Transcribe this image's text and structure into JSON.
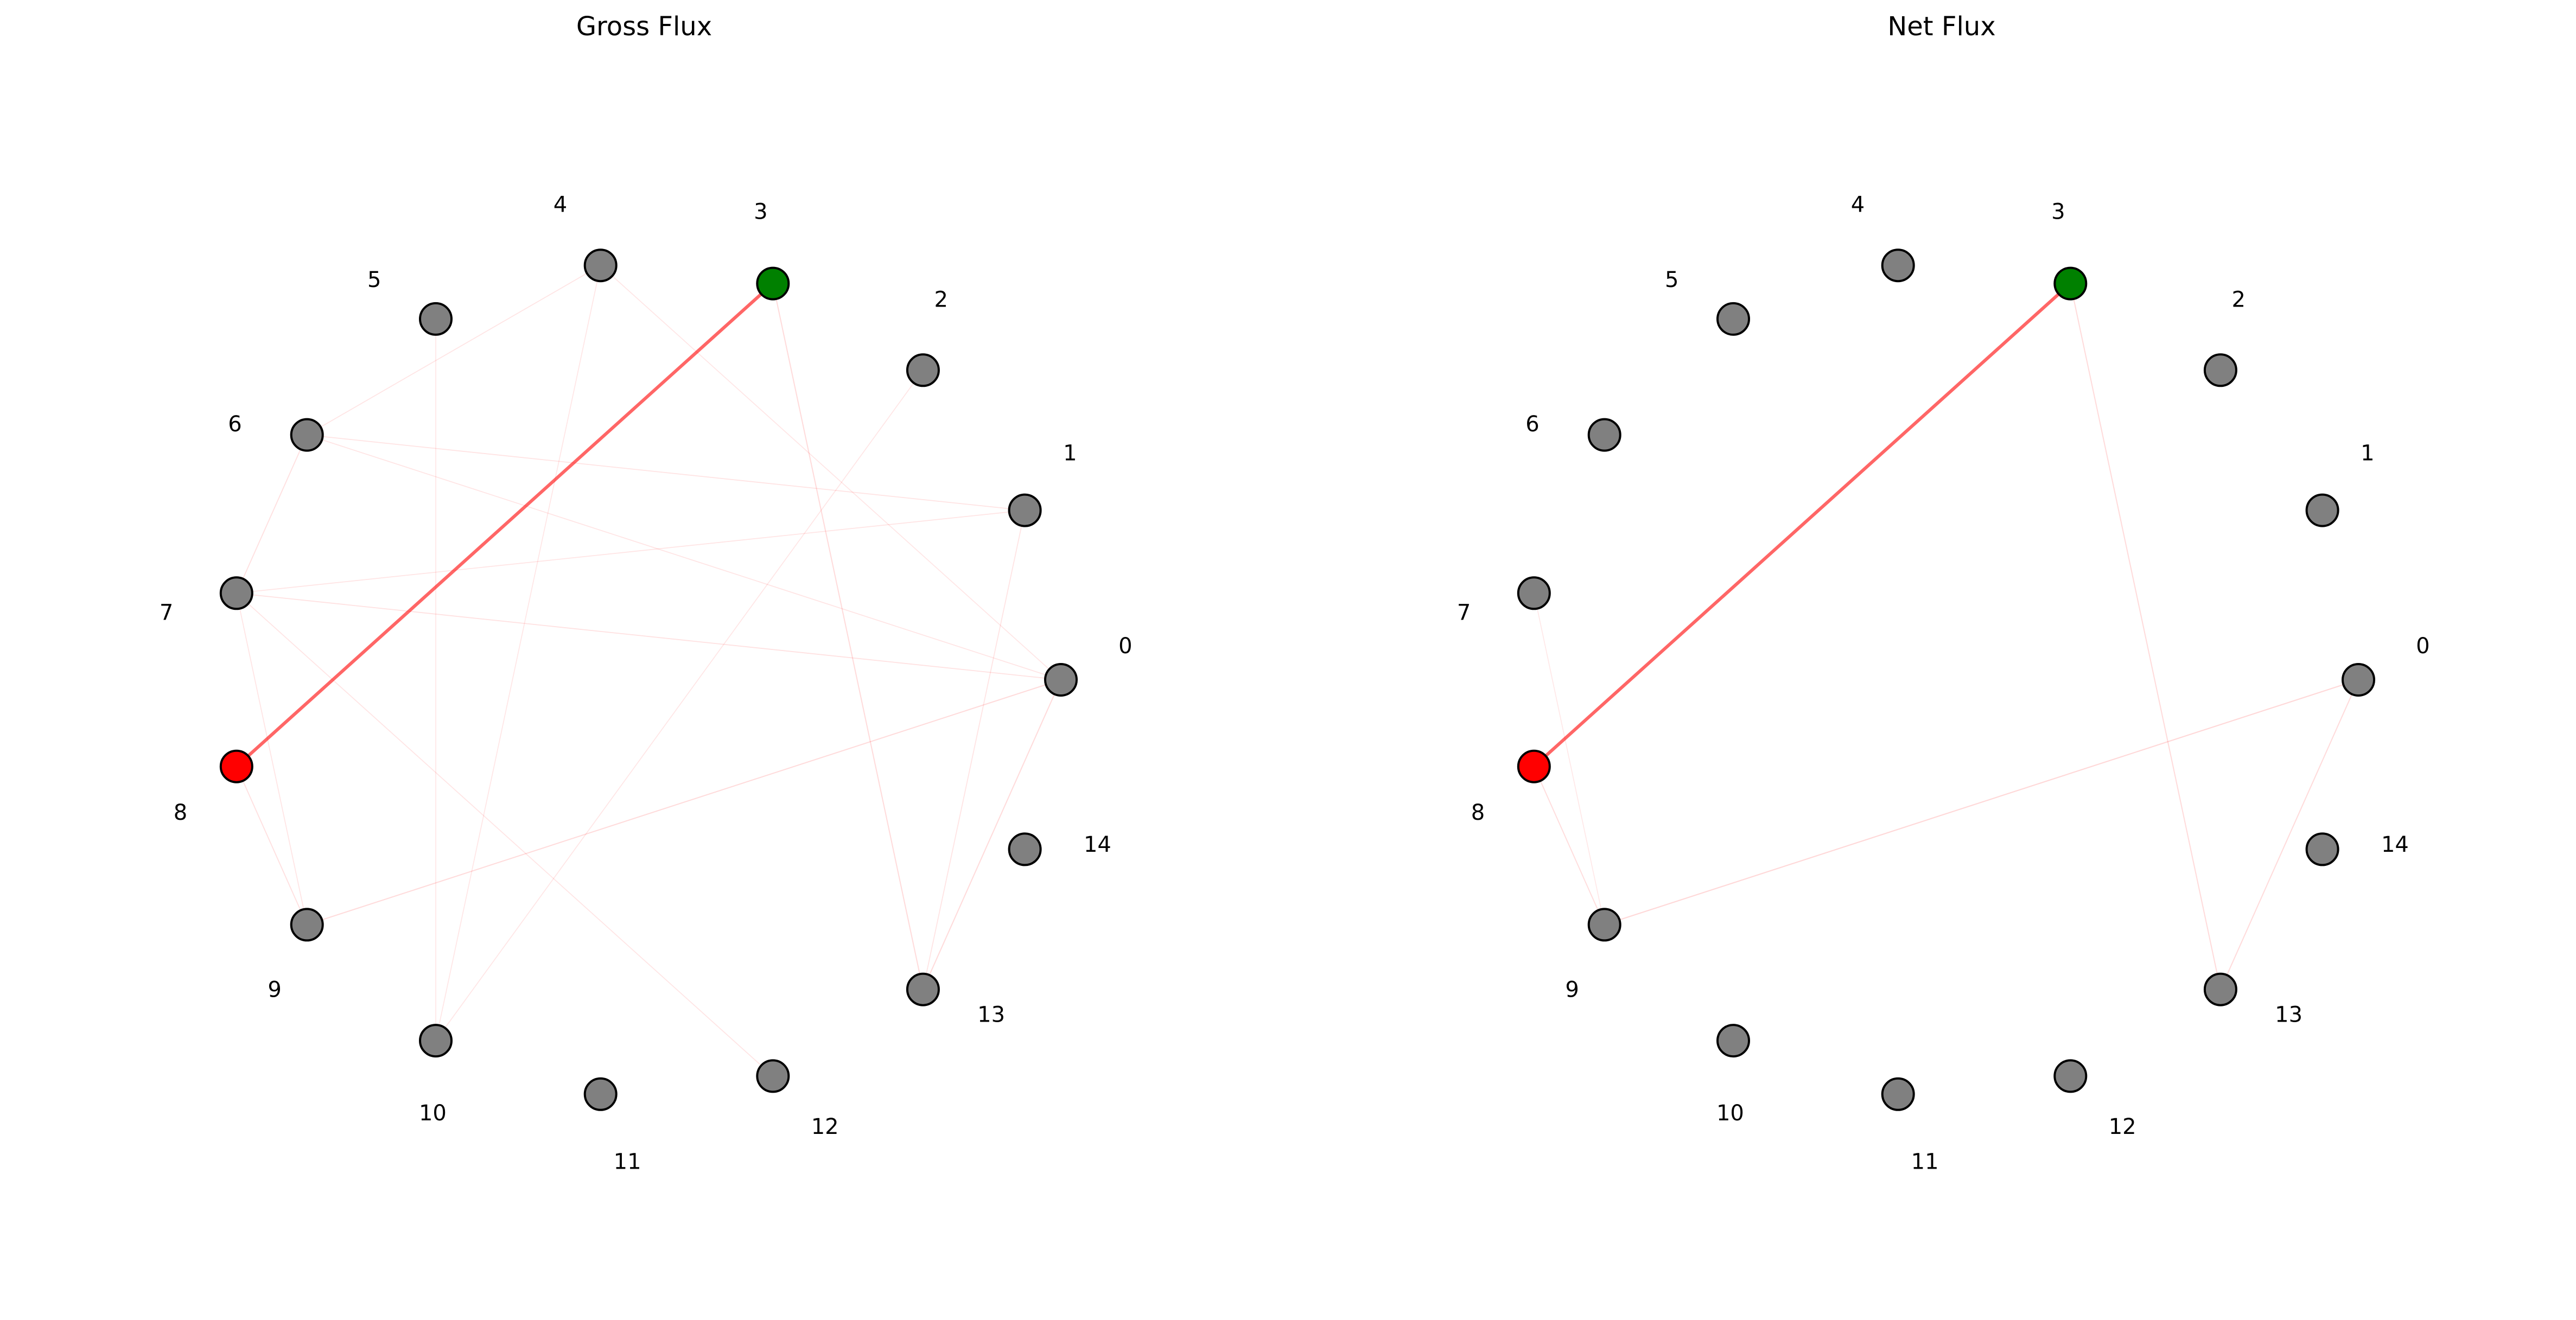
{
  "panels": [
    {
      "id": "gross",
      "title": "Gross Flux",
      "nodes": [
        {
          "label": "0",
          "color": "#808080"
        },
        {
          "label": "1",
          "color": "#808080"
        },
        {
          "label": "2",
          "color": "#808080"
        },
        {
          "label": "3",
          "color": "#008000"
        },
        {
          "label": "4",
          "color": "#808080"
        },
        {
          "label": "5",
          "color": "#808080"
        },
        {
          "label": "6",
          "color": "#808080"
        },
        {
          "label": "7",
          "color": "#808080"
        },
        {
          "label": "8",
          "color": "#ff0000"
        },
        {
          "label": "9",
          "color": "#808080"
        },
        {
          "label": "10",
          "color": "#808080"
        },
        {
          "label": "11",
          "color": "#808080"
        },
        {
          "label": "12",
          "color": "#808080"
        },
        {
          "label": "13",
          "color": "#808080"
        },
        {
          "label": "14",
          "color": "#808080"
        }
      ],
      "edges": [
        {
          "source": 8,
          "target": 3,
          "weight": 1.0
        },
        {
          "source": 3,
          "target": 13,
          "weight": 0.12
        },
        {
          "source": 0,
          "target": 13,
          "weight": 0.12
        },
        {
          "source": 9,
          "target": 0,
          "weight": 0.12
        },
        {
          "source": 8,
          "target": 9,
          "weight": 0.08
        },
        {
          "source": 7,
          "target": 6,
          "weight": 0.08
        },
        {
          "source": 7,
          "target": 0,
          "weight": 0.07
        },
        {
          "source": 6,
          "target": 1,
          "weight": 0.06
        },
        {
          "source": 1,
          "target": 13,
          "weight": 0.06
        },
        {
          "source": 7,
          "target": 1,
          "weight": 0.05
        },
        {
          "source": 6,
          "target": 0,
          "weight": 0.05
        },
        {
          "source": 6,
          "target": 4,
          "weight": 0.05
        },
        {
          "source": 7,
          "target": 12,
          "weight": 0.05
        },
        {
          "source": 7,
          "target": 9,
          "weight": 0.05
        },
        {
          "source": 5,
          "target": 10,
          "weight": 0.04
        },
        {
          "source": 4,
          "target": 10,
          "weight": 0.04
        },
        {
          "source": 10,
          "target": 2,
          "weight": 0.04
        },
        {
          "source": 4,
          "target": 0,
          "weight": 0.04
        }
      ]
    },
    {
      "id": "net",
      "title": "Net Flux",
      "nodes": [
        {
          "label": "0",
          "color": "#808080"
        },
        {
          "label": "1",
          "color": "#808080"
        },
        {
          "label": "2",
          "color": "#808080"
        },
        {
          "label": "3",
          "color": "#008000"
        },
        {
          "label": "4",
          "color": "#808080"
        },
        {
          "label": "5",
          "color": "#808080"
        },
        {
          "label": "6",
          "color": "#808080"
        },
        {
          "label": "7",
          "color": "#808080"
        },
        {
          "label": "8",
          "color": "#ff0000"
        },
        {
          "label": "9",
          "color": "#808080"
        },
        {
          "label": "10",
          "color": "#808080"
        },
        {
          "label": "11",
          "color": "#808080"
        },
        {
          "label": "12",
          "color": "#808080"
        },
        {
          "label": "13",
          "color": "#808080"
        },
        {
          "label": "14",
          "color": "#808080"
        }
      ],
      "edges": [
        {
          "source": 8,
          "target": 3,
          "weight": 1.0
        },
        {
          "source": 3,
          "target": 13,
          "weight": 0.12
        },
        {
          "source": 0,
          "target": 13,
          "weight": 0.12
        },
        {
          "source": 9,
          "target": 0,
          "weight": 0.14
        },
        {
          "source": 8,
          "target": 9,
          "weight": 0.1
        },
        {
          "source": 7,
          "target": 9,
          "weight": 0.03
        }
      ]
    }
  ],
  "edge_color": "#ff0000"
}
